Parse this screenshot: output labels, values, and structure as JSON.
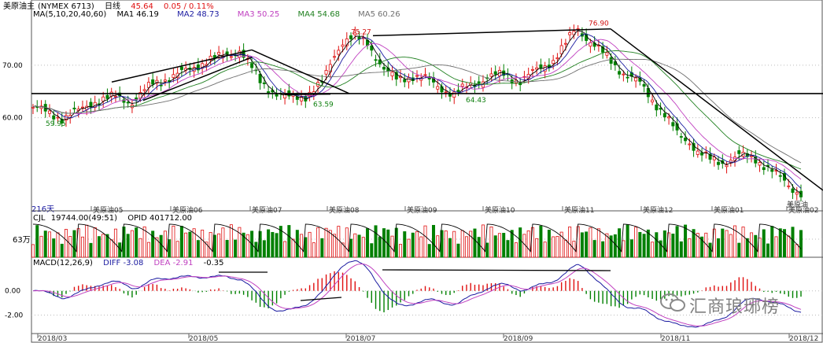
{
  "header": {
    "instrument": "美原油主",
    "code": "(NYMEX 6713)",
    "period": "日线",
    "price": "45.64",
    "change": "0.05 / 0.11%"
  },
  "ma_legend": {
    "label": "MA(5,10,20,40,60)",
    "items": [
      {
        "name": "MA1",
        "value": "46.19",
        "color": "#000000"
      },
      {
        "name": "MA2",
        "value": "48.73",
        "color": "#1a1aa0"
      },
      {
        "name": "MA3",
        "value": "50.25",
        "color": "#c040c0"
      },
      {
        "name": "MA4",
        "value": "54.68",
        "color": "#208020"
      },
      {
        "name": "MA5",
        "value": "60.26",
        "color": "#707070"
      }
    ]
  },
  "vol_legend": {
    "label": "CJL",
    "vol": "19744.00(49:51)",
    "opid": "OPID 401712.00"
  },
  "macd_legend": {
    "label": "MACD(12,26,9)",
    "diff": "DIFF -3.08",
    "dea": "DEA -2.91",
    "macd": "-0.35"
  },
  "days_label": "216天",
  "vol_axis_label": "63万",
  "watermark": "汇商琅琊榜",
  "contract_labels": [
    "美原油05",
    "美原油06",
    "美原油07",
    "美原油08",
    "美原油09",
    "美原油10",
    "美原油11",
    "美原油12",
    "美原油01",
    "美原油02"
  ],
  "contract_labels_extra": "美原油",
  "chart_data": {
    "type": "candlestick",
    "y_ticks": [
      "70.00",
      "60.00"
    ],
    "macd_ticks": [
      "0.00",
      "-2.00"
    ],
    "date_ticks": [
      "2018/03",
      "2018/05",
      "2018/07",
      "2018/09",
      "2018/11",
      "2018/12"
    ],
    "annotations": [
      {
        "text": "75.27",
        "value": 75.27
      },
      {
        "text": "76.90",
        "value": 76.9
      },
      {
        "text": "59.95",
        "value": 59.95
      },
      {
        "text": "63.59",
        "value": 63.59
      },
      {
        "text": "64.43",
        "value": 64.43
      }
    ],
    "key_prices": [
      {
        "date": "2018/03",
        "close": 62.0
      },
      {
        "date": "2018/03 low",
        "close": 59.95
      },
      {
        "date": "2018/05",
        "close": 70.0
      },
      {
        "date": "2018/05 peak",
        "close": 72.5
      },
      {
        "date": "2018/06 low",
        "close": 63.59
      },
      {
        "date": "2018/07 peak",
        "close": 75.27
      },
      {
        "date": "2018/08",
        "close": 67.0
      },
      {
        "date": "2018/08 low",
        "close": 64.43
      },
      {
        "date": "2018/10 peak",
        "close": 76.9
      },
      {
        "date": "2018/11",
        "close": 55.0
      },
      {
        "date": "2018/12",
        "close": 50.0
      },
      {
        "date": "2018/12 last",
        "close": 45.64
      }
    ],
    "support_level": 64.6,
    "colors": {
      "up": "#e01010",
      "down": "#008000",
      "trend": "#000000"
    }
  }
}
